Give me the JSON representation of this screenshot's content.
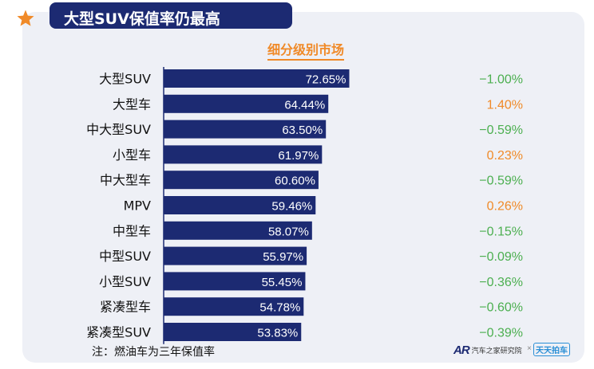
{
  "header": {
    "title": "大型SUV保值率仍最高",
    "subtitle": "细分级别市场"
  },
  "colors": {
    "bar": "#1c2a72",
    "positive_change": "#f08a28",
    "negative_change": "#4caf50",
    "title_bg": "#1c2a72",
    "star": "#f08a28"
  },
  "chart_data": {
    "type": "bar",
    "orientation": "horizontal",
    "title": "细分级别市场",
    "categories": [
      "大型SUV",
      "大型车",
      "中大型SUV",
      "小型车",
      "中大型车",
      "MPV",
      "中型车",
      "中型SUV",
      "小型SUV",
      "紧凑型车",
      "紧凑型SUV"
    ],
    "values": [
      72.65,
      64.44,
      63.5,
      61.97,
      60.6,
      59.46,
      58.07,
      55.97,
      55.45,
      54.78,
      53.83
    ],
    "value_labels": [
      "72.65%",
      "64.44%",
      "63.50%",
      "61.97%",
      "60.60%",
      "59.46%",
      "58.07%",
      "55.97%",
      "55.45%",
      "54.78%",
      "53.83%"
    ],
    "changes": [
      -1.0,
      1.4,
      -0.59,
      0.23,
      -0.59,
      0.26,
      -0.15,
      -0.09,
      -0.36,
      -0.6,
      -0.39
    ],
    "change_labels": [
      "−1.00%",
      "1.40%",
      "−0.59%",
      "0.23%",
      "−0.59%",
      "0.26%",
      "−0.15%",
      "−0.09%",
      "−0.36%",
      "−0.60%",
      "−0.39%"
    ],
    "xlim": [
      0,
      100
    ],
    "unit": "%"
  },
  "footer": {
    "note": "注：燃油车为三年保值率",
    "brand1_logo": "AR",
    "brand1_name": "汽车之家研究院",
    "separator": "×",
    "brand2_name": "天天拍车"
  }
}
